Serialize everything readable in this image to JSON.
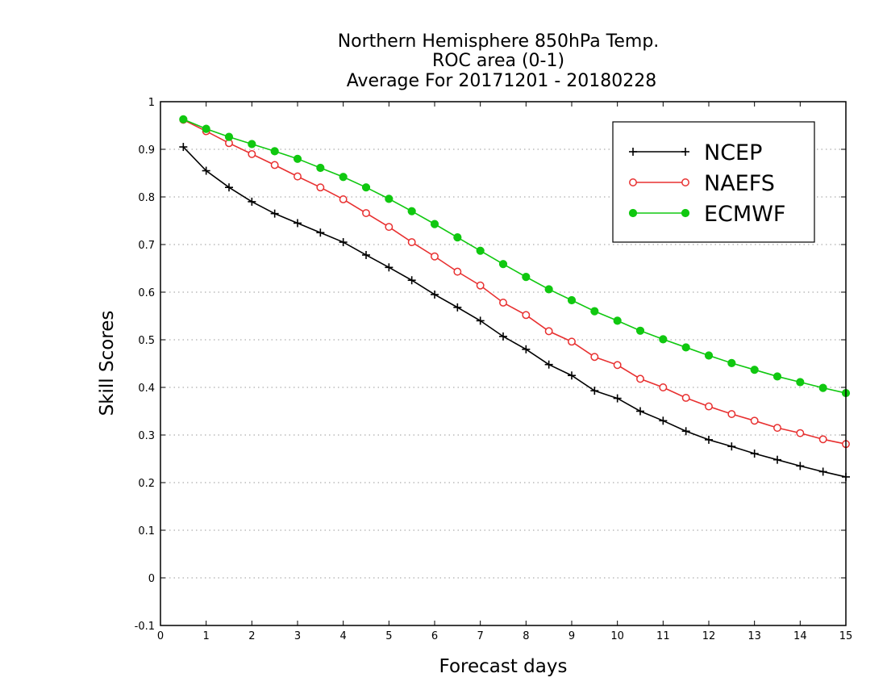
{
  "chart_data": {
    "type": "line",
    "title_lines": [
      "Northern Hemisphere 850hPa Temp.",
      "ROC area (0-1)",
      "Average For 20171201 - 20180228"
    ],
    "xlabel": "Forecast days",
    "ylabel": "Skill Scores",
    "xlim": [
      0,
      15
    ],
    "ylim": [
      -0.1,
      1
    ],
    "xticks": [
      0,
      1,
      2,
      3,
      4,
      5,
      6,
      7,
      8,
      9,
      10,
      11,
      12,
      13,
      14,
      15
    ],
    "xtick_labels": [
      "0",
      "1",
      "2",
      "3",
      "4",
      "5",
      "6",
      "7",
      "8",
      "9",
      "10",
      "11",
      "12",
      "13",
      "14",
      "15"
    ],
    "yticks": [
      -0.1,
      0,
      0.1,
      0.2,
      0.3,
      0.4,
      0.5,
      0.6,
      0.7,
      0.8,
      0.9,
      1
    ],
    "ytick_labels": [
      "-0.1",
      "0",
      "0.1",
      "0.2",
      "0.3",
      "0.4",
      "0.5",
      "0.6",
      "0.7",
      "0.8",
      "0.9",
      "1"
    ],
    "grid": "horizontal-dotted",
    "legend_position": "top-right",
    "x": [
      0.5,
      1,
      1.5,
      2,
      2.5,
      3,
      3.5,
      4,
      4.5,
      5,
      5.5,
      6,
      6.5,
      7,
      7.5,
      8,
      8.5,
      9,
      9.5,
      10,
      10.5,
      11,
      11.5,
      12,
      12.5,
      13,
      13.5,
      14,
      14.5,
      15
    ],
    "series": [
      {
        "name": "NCEP",
        "color": "#000000",
        "marker": "plus",
        "values": [
          0.905,
          0.855,
          0.82,
          0.79,
          0.765,
          0.745,
          0.725,
          0.705,
          0.678,
          0.652,
          0.625,
          0.595,
          0.568,
          0.54,
          0.507,
          0.48,
          0.448,
          0.425,
          0.393,
          0.377,
          0.35,
          0.33,
          0.308,
          0.29,
          0.276,
          0.261,
          0.248,
          0.235,
          0.223,
          0.212
        ]
      },
      {
        "name": "NAEFS",
        "color": "#e83030",
        "marker": "open-circle",
        "values": [
          0.962,
          0.938,
          0.913,
          0.89,
          0.867,
          0.843,
          0.82,
          0.795,
          0.766,
          0.737,
          0.705,
          0.675,
          0.643,
          0.614,
          0.578,
          0.552,
          0.518,
          0.496,
          0.464,
          0.447,
          0.418,
          0.4,
          0.378,
          0.36,
          0.344,
          0.33,
          0.315,
          0.304,
          0.291,
          0.281
        ]
      },
      {
        "name": "ECMWF",
        "color": "#10c810",
        "marker": "filled-circle",
        "values": [
          0.963,
          0.943,
          0.926,
          0.911,
          0.896,
          0.88,
          0.861,
          0.842,
          0.82,
          0.796,
          0.77,
          0.743,
          0.715,
          0.687,
          0.659,
          0.632,
          0.606,
          0.583,
          0.56,
          0.54,
          0.519,
          0.501,
          0.484,
          0.467,
          0.451,
          0.437,
          0.423,
          0.411,
          0.399,
          0.388
        ]
      }
    ]
  }
}
